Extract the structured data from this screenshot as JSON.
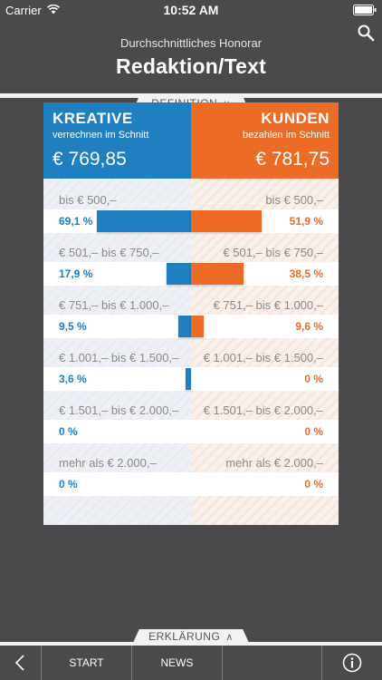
{
  "status_bar": {
    "carrier": "Carrier",
    "time": "10:52 AM"
  },
  "header": {
    "subtitle": "Durchschnittliches Honorar",
    "title": "Redaktion/Text"
  },
  "definition_tab": {
    "label": "DEFINITION"
  },
  "kreative": {
    "title": "KREATIVE",
    "subtitle": "verrechnen im Schnitt",
    "amount": "€ 769,85",
    "color": "#1f7fc1"
  },
  "kunden": {
    "title": "KUNDEN",
    "subtitle": "bezahlen im Schnitt",
    "amount": "€ 781,75",
    "color": "#ec6b27"
  },
  "ranges": [
    {
      "label": "bis € 500,–",
      "kreative_pct": "69,1 %",
      "kunden_pct": "51,9 %",
      "kreative_value": 69.1,
      "kunden_value": 51.9
    },
    {
      "label": "€ 501,– bis € 750,–",
      "kreative_pct": "17,9 %",
      "kunden_pct": "38,5 %",
      "kreative_value": 17.9,
      "kunden_value": 38.5
    },
    {
      "label": "€ 751,– bis € 1.000,–",
      "kreative_pct": "9,5 %",
      "kunden_pct": "9,6 %",
      "kreative_value": 9.5,
      "kunden_value": 9.6
    },
    {
      "label": "€ 1.001,– bis € 1.500,–",
      "kreative_pct": "3,6 %",
      "kunden_pct": "0 %",
      "kreative_value": 3.6,
      "kunden_value": 0
    },
    {
      "label": "€ 1.501,– bis € 2.000,–",
      "kreative_pct": "0 %",
      "kunden_pct": "0 %",
      "kreative_value": 0,
      "kunden_value": 0
    },
    {
      "label": "mehr als € 2.000,–",
      "kreative_pct": "0 %",
      "kunden_pct": "0 %",
      "kreative_value": 0,
      "kunden_value": 0
    }
  ],
  "bottom_tab": {
    "label": "ERKLÄRUNG"
  },
  "tabbar": {
    "start": "START",
    "news": "NEWS"
  }
}
